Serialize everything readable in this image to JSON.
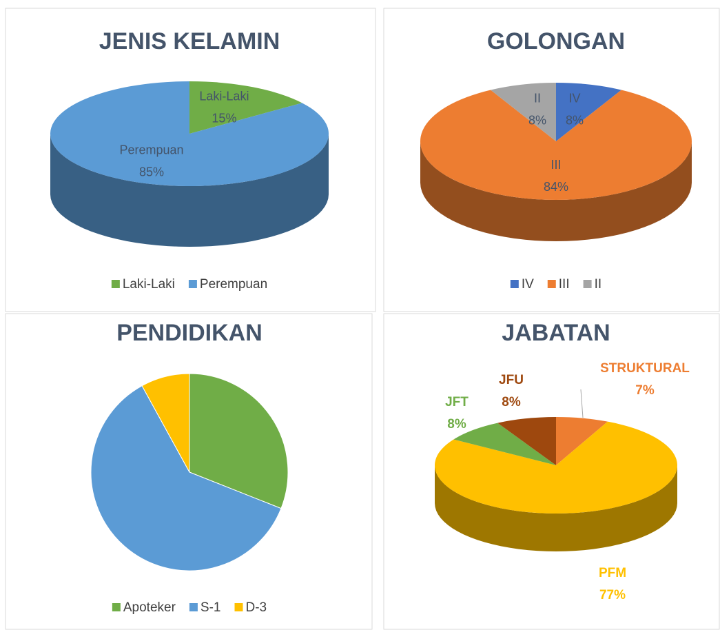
{
  "chart_data": [
    {
      "type": "pie",
      "title": "JENIS KELAMIN",
      "categories": [
        "Laki-Laki",
        "Perempuan"
      ],
      "values": [
        15,
        85
      ],
      "value_labels": [
        "15%",
        "85%"
      ],
      "colors": [
        "#70ad47",
        "#5b9bd5"
      ],
      "three_d": true,
      "labels": "inside",
      "legend": "bottom"
    },
    {
      "type": "pie",
      "title": "GOLONGAN",
      "categories": [
        "IV",
        "III",
        "II"
      ],
      "values": [
        8,
        84,
        8
      ],
      "value_labels": [
        "8%",
        "84%",
        "8%"
      ],
      "colors": [
        "#4472c4",
        "#ed7d31",
        "#a5a5a5"
      ],
      "three_d": true,
      "labels": "inside",
      "legend": "bottom"
    },
    {
      "type": "pie",
      "title": "PENDIDIKAN",
      "categories": [
        "Apoteker",
        "S-1",
        "D-3"
      ],
      "values": [
        31,
        61,
        8
      ],
      "colors": [
        "#70ad47",
        "#5b9bd5",
        "#ffc000"
      ],
      "three_d": false,
      "legend": "bottom"
    },
    {
      "type": "pie",
      "title": "JABATAN",
      "categories": [
        "STRUKTURAL",
        "PFM",
        "JFT",
        "JFU"
      ],
      "values": [
        7,
        77,
        8,
        8
      ],
      "value_labels": [
        "7%",
        "77%",
        "8%",
        "8%"
      ],
      "colors": [
        "#ed7d31",
        "#ffc000",
        "#70ad47",
        "#9e480e"
      ],
      "three_d": true,
      "labels": "outside"
    }
  ]
}
